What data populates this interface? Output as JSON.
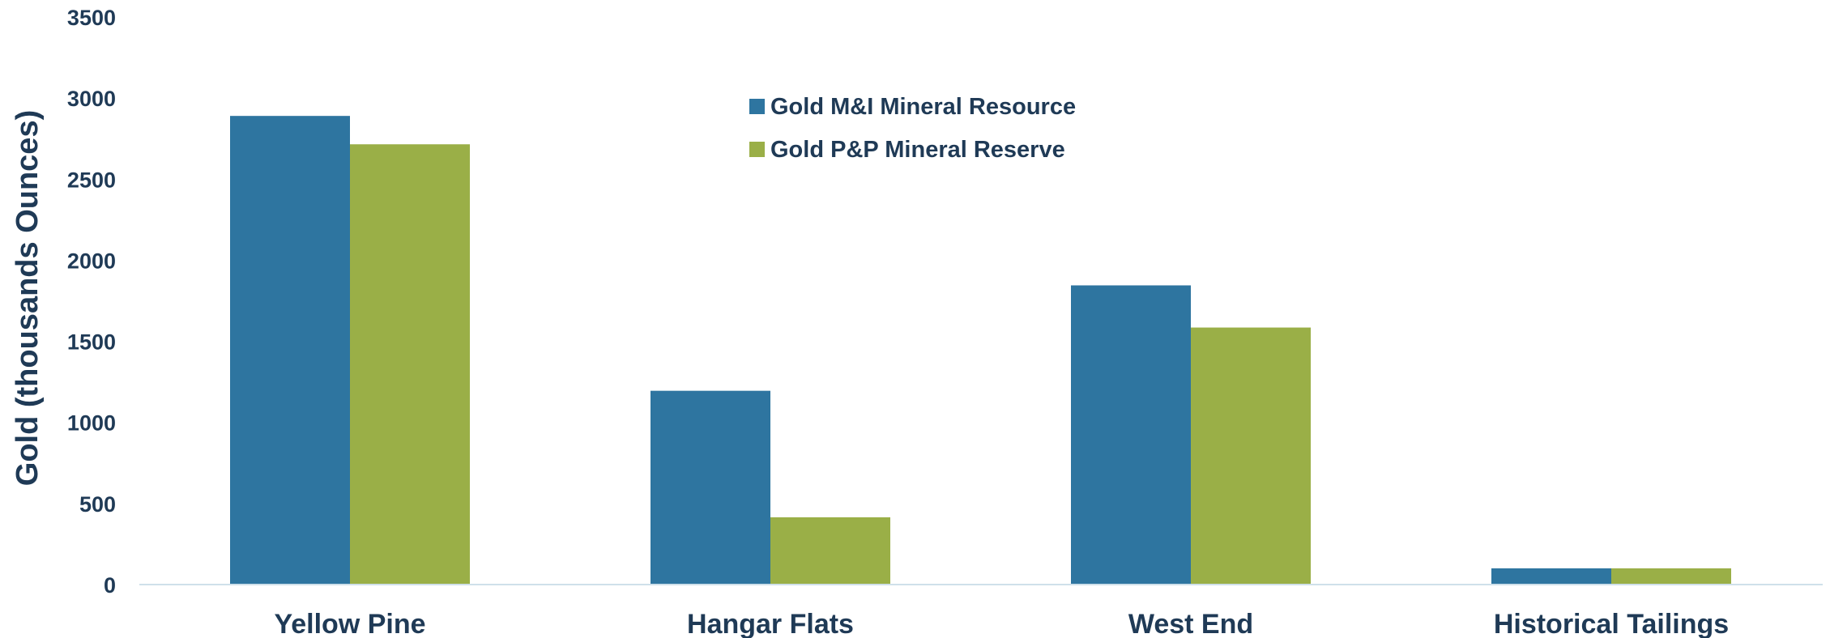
{
  "chart_data": {
    "type": "bar",
    "title": "",
    "xlabel": "",
    "ylabel": "Gold (thousands Ounces)",
    "ylim": [
      0,
      3500
    ],
    "yticks": [
      0,
      500,
      1000,
      1500,
      2000,
      2500,
      3000,
      3500
    ],
    "categories": [
      "Yellow Pine",
      "Hangar Flats",
      "West End",
      "Historical Tailings"
    ],
    "series": [
      {
        "name": "Gold M&I Mineral Resource",
        "color": "#2e75a0",
        "values": [
          2890,
          1195,
          1845,
          100
        ]
      },
      {
        "name": "Gold P&P Mineral Reserve",
        "color": "#9aaf47",
        "values": [
          2715,
          415,
          1585,
          100
        ]
      }
    ],
    "grid": false,
    "legend": "top-center",
    "axis_color": "#cfe0ea",
    "text_color": "#1f3a56"
  }
}
